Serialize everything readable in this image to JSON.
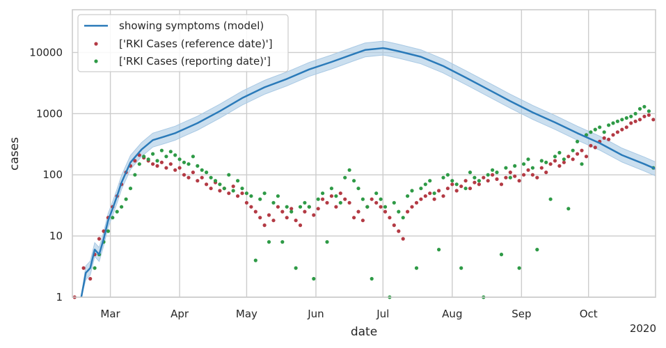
{
  "chart_data": {
    "type": "line",
    "title": "",
    "xlabel": "date",
    "ylabel": "cases",
    "year_label": "2020",
    "yscale": "log",
    "ylim": [
      1,
      50000
    ],
    "xlim_day_of_year": [
      44,
      305
    ],
    "y_ticks": [
      {
        "value": 1,
        "label": "1"
      },
      {
        "value": 10,
        "label": "10"
      },
      {
        "value": 100,
        "label": "100"
      },
      {
        "value": 1000,
        "label": "1000"
      },
      {
        "value": 10000,
        "label": "10000"
      }
    ],
    "x_ticks": [
      {
        "day": 61,
        "label": "Mar"
      },
      {
        "day": 92,
        "label": "Apr"
      },
      {
        "day": 122,
        "label": "May"
      },
      {
        "day": 153,
        "label": "Jun"
      },
      {
        "day": 183,
        "label": "Jul"
      },
      {
        "day": 214,
        "label": "Aug"
      },
      {
        "day": 245,
        "label": "Sep"
      },
      {
        "day": 275,
        "label": "Oct"
      }
    ],
    "colors": {
      "model": "#2a7ab9",
      "band": "#a9c9e4",
      "reference": "#b33a44",
      "reporting": "#2e9a46"
    },
    "legend": {
      "location": "top-left",
      "entries": [
        {
          "key": "model",
          "label": "showing symptoms (model)"
        },
        {
          "key": "reference",
          "label": "['RKI Cases (reference date)']"
        },
        {
          "key": "reporting",
          "label": "['RKI Cases (reporting date)']"
        }
      ]
    },
    "series": [
      {
        "name": "showing symptoms (model)",
        "key": "model",
        "kind": "line_with_band",
        "days": [
          48,
          50,
          52,
          54,
          56,
          58,
          60,
          62,
          64,
          66,
          70,
          75,
          80,
          85,
          90,
          95,
          100,
          110,
          120,
          130,
          140,
          150,
          160,
          170,
          175,
          180,
          183,
          185,
          190,
          200,
          210,
          220,
          230,
          240,
          250,
          260,
          270,
          280,
          290,
          300,
          305
        ],
        "values": [
          0.7,
          2.5,
          3,
          6,
          5,
          9,
          18,
          28,
          45,
          75,
          160,
          260,
          370,
          420,
          480,
          580,
          700,
          1100,
          1800,
          2700,
          3700,
          5300,
          7000,
          9500,
          11000,
          11500,
          11800,
          11500,
          10500,
          8500,
          6000,
          3900,
          2500,
          1600,
          1050,
          720,
          480,
          330,
          210,
          150,
          125
        ],
        "band_factor": 1.3
      },
      {
        "name": "['RKI Cases (reference date)']",
        "key": "reference",
        "kind": "scatter",
        "points": [
          [
            45,
            1
          ],
          [
            49,
            3
          ],
          [
            52,
            2
          ],
          [
            54,
            5
          ],
          [
            56,
            9
          ],
          [
            58,
            12
          ],
          [
            60,
            20
          ],
          [
            62,
            30
          ],
          [
            64,
            45
          ],
          [
            66,
            70
          ],
          [
            68,
            110
          ],
          [
            70,
            140
          ],
          [
            72,
            170
          ],
          [
            74,
            210
          ],
          [
            76,
            190
          ],
          [
            78,
            170
          ],
          [
            80,
            150
          ],
          [
            82,
            140
          ],
          [
            84,
            160
          ],
          [
            86,
            130
          ],
          [
            88,
            150
          ],
          [
            90,
            120
          ],
          [
            92,
            130
          ],
          [
            94,
            100
          ],
          [
            96,
            90
          ],
          [
            98,
            110
          ],
          [
            100,
            80
          ],
          [
            102,
            90
          ],
          [
            104,
            70
          ],
          [
            106,
            60
          ],
          [
            108,
            75
          ],
          [
            110,
            55
          ],
          [
            112,
            60
          ],
          [
            114,
            50
          ],
          [
            116,
            65
          ],
          [
            118,
            45
          ],
          [
            120,
            50
          ],
          [
            122,
            35
          ],
          [
            124,
            30
          ],
          [
            126,
            25
          ],
          [
            128,
            20
          ],
          [
            130,
            15
          ],
          [
            132,
            22
          ],
          [
            134,
            18
          ],
          [
            136,
            30
          ],
          [
            138,
            25
          ],
          [
            140,
            20
          ],
          [
            142,
            28
          ],
          [
            144,
            18
          ],
          [
            146,
            15
          ],
          [
            148,
            25
          ],
          [
            150,
            30
          ],
          [
            152,
            22
          ],
          [
            154,
            28
          ],
          [
            156,
            40
          ],
          [
            158,
            35
          ],
          [
            160,
            45
          ],
          [
            162,
            30
          ],
          [
            164,
            50
          ],
          [
            166,
            40
          ],
          [
            168,
            35
          ],
          [
            170,
            20
          ],
          [
            172,
            25
          ],
          [
            174,
            18
          ],
          [
            176,
            30
          ],
          [
            178,
            40
          ],
          [
            180,
            35
          ],
          [
            182,
            30
          ],
          [
            184,
            25
          ],
          [
            186,
            20
          ],
          [
            188,
            15
          ],
          [
            190,
            12
          ],
          [
            192,
            9
          ],
          [
            194,
            25
          ],
          [
            196,
            30
          ],
          [
            198,
            35
          ],
          [
            200,
            40
          ],
          [
            202,
            45
          ],
          [
            204,
            50
          ],
          [
            206,
            40
          ],
          [
            208,
            55
          ],
          [
            210,
            45
          ],
          [
            212,
            60
          ],
          [
            214,
            70
          ],
          [
            216,
            55
          ],
          [
            218,
            65
          ],
          [
            220,
            80
          ],
          [
            222,
            60
          ],
          [
            224,
            75
          ],
          [
            226,
            70
          ],
          [
            228,
            90
          ],
          [
            230,
            80
          ],
          [
            232,
            100
          ],
          [
            234,
            85
          ],
          [
            236,
            70
          ],
          [
            238,
            90
          ],
          [
            240,
            110
          ],
          [
            242,
            95
          ],
          [
            244,
            80
          ],
          [
            246,
            100
          ],
          [
            248,
            120
          ],
          [
            250,
            100
          ],
          [
            252,
            90
          ],
          [
            254,
            130
          ],
          [
            256,
            110
          ],
          [
            258,
            150
          ],
          [
            260,
            170
          ],
          [
            262,
            140
          ],
          [
            264,
            160
          ],
          [
            266,
            200
          ],
          [
            268,
            180
          ],
          [
            270,
            220
          ],
          [
            272,
            250
          ],
          [
            274,
            200
          ],
          [
            276,
            300
          ],
          [
            278,
            280
          ],
          [
            280,
            350
          ],
          [
            282,
            400
          ],
          [
            284,
            380
          ],
          [
            286,
            450
          ],
          [
            288,
            500
          ],
          [
            290,
            550
          ],
          [
            292,
            600
          ],
          [
            294,
            700
          ],
          [
            296,
            750
          ],
          [
            298,
            800
          ],
          [
            300,
            900
          ],
          [
            302,
            950
          ],
          [
            304,
            800
          ]
        ]
      },
      {
        "name": "['RKI Cases (reporting date)']",
        "key": "reporting",
        "kind": "scatter",
        "points": [
          [
            54,
            3
          ],
          [
            56,
            5
          ],
          [
            58,
            8
          ],
          [
            60,
            12
          ],
          [
            62,
            20
          ],
          [
            64,
            25
          ],
          [
            66,
            30
          ],
          [
            68,
            40
          ],
          [
            70,
            60
          ],
          [
            72,
            100
          ],
          [
            74,
            150
          ],
          [
            76,
            200
          ],
          [
            78,
            180
          ],
          [
            80,
            220
          ],
          [
            82,
            170
          ],
          [
            84,
            250
          ],
          [
            86,
            200
          ],
          [
            88,
            240
          ],
          [
            90,
            210
          ],
          [
            92,
            180
          ],
          [
            94,
            160
          ],
          [
            96,
            150
          ],
          [
            98,
            200
          ],
          [
            100,
            140
          ],
          [
            102,
            120
          ],
          [
            104,
            110
          ],
          [
            106,
            90
          ],
          [
            108,
            80
          ],
          [
            110,
            70
          ],
          [
            112,
            60
          ],
          [
            114,
            100
          ],
          [
            116,
            55
          ],
          [
            118,
            80
          ],
          [
            120,
            60
          ],
          [
            122,
            50
          ],
          [
            124,
            45
          ],
          [
            126,
            4
          ],
          [
            128,
            40
          ],
          [
            130,
            50
          ],
          [
            132,
            8
          ],
          [
            134,
            35
          ],
          [
            136,
            45
          ],
          [
            138,
            8
          ],
          [
            140,
            30
          ],
          [
            142,
            25
          ],
          [
            144,
            3
          ],
          [
            146,
            30
          ],
          [
            148,
            35
          ],
          [
            150,
            30
          ],
          [
            152,
            2
          ],
          [
            154,
            40
          ],
          [
            156,
            50
          ],
          [
            158,
            8
          ],
          [
            160,
            60
          ],
          [
            162,
            45
          ],
          [
            164,
            35
          ],
          [
            166,
            90
          ],
          [
            168,
            120
          ],
          [
            170,
            80
          ],
          [
            172,
            60
          ],
          [
            174,
            40
          ],
          [
            176,
            30
          ],
          [
            178,
            2
          ],
          [
            180,
            50
          ],
          [
            182,
            40
          ],
          [
            184,
            30
          ],
          [
            186,
            1
          ],
          [
            188,
            35
          ],
          [
            190,
            25
          ],
          [
            192,
            20
          ],
          [
            194,
            45
          ],
          [
            196,
            55
          ],
          [
            198,
            3
          ],
          [
            200,
            60
          ],
          [
            202,
            70
          ],
          [
            204,
            80
          ],
          [
            206,
            50
          ],
          [
            208,
            6
          ],
          [
            210,
            90
          ],
          [
            212,
            100
          ],
          [
            214,
            80
          ],
          [
            216,
            70
          ],
          [
            218,
            3
          ],
          [
            220,
            60
          ],
          [
            222,
            110
          ],
          [
            224,
            90
          ],
          [
            226,
            80
          ],
          [
            228,
            1
          ],
          [
            230,
            100
          ],
          [
            232,
            120
          ],
          [
            234,
            110
          ],
          [
            236,
            5
          ],
          [
            238,
            130
          ],
          [
            240,
            90
          ],
          [
            242,
            140
          ],
          [
            244,
            3
          ],
          [
            246,
            150
          ],
          [
            248,
            180
          ],
          [
            250,
            130
          ],
          [
            252,
            6
          ],
          [
            254,
            170
          ],
          [
            256,
            160
          ],
          [
            258,
            40
          ],
          [
            260,
            200
          ],
          [
            262,
            230
          ],
          [
            264,
            180
          ],
          [
            266,
            28
          ],
          [
            268,
            250
          ],
          [
            270,
            350
          ],
          [
            272,
            150
          ],
          [
            274,
            450
          ],
          [
            276,
            500
          ],
          [
            278,
            550
          ],
          [
            280,
            600
          ],
          [
            282,
            500
          ],
          [
            284,
            650
          ],
          [
            286,
            700
          ],
          [
            288,
            750
          ],
          [
            290,
            800
          ],
          [
            292,
            850
          ],
          [
            294,
            900
          ],
          [
            296,
            1000
          ],
          [
            298,
            1200
          ],
          [
            300,
            1300
          ],
          [
            302,
            1100
          ],
          [
            304,
            130
          ]
        ]
      }
    ]
  }
}
